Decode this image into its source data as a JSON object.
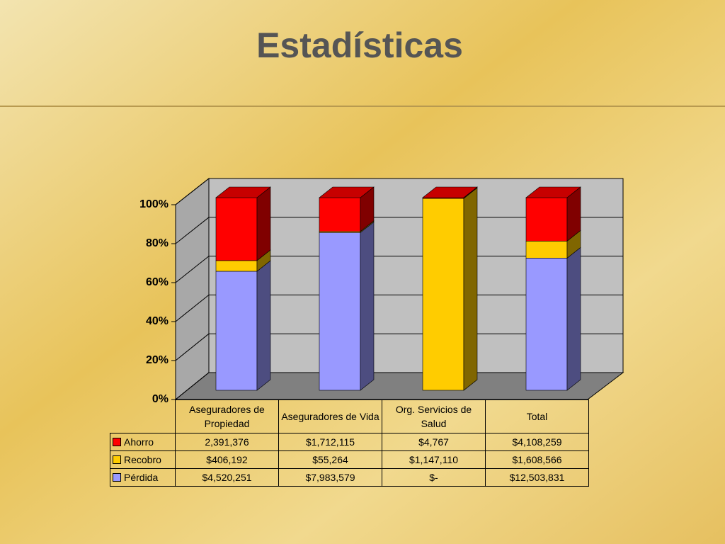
{
  "chart_data": {
    "type": "bar",
    "stacking": "percent",
    "title": "Estadísticas",
    "categories": [
      "Aseguradores de Propiedad",
      "Aseguradores de Vida",
      "Org. Servicios de Salud",
      "Total"
    ],
    "series": [
      {
        "name": "Ahorro",
        "color": "#ff0000",
        "values": [
          2391376,
          1712115,
          4767,
          4108259
        ],
        "value_labels": [
          "2,391,376",
          "$1,712,115",
          "$4,767",
          "$4,108,259"
        ]
      },
      {
        "name": "Recobro",
        "color": "#ffcc00",
        "values": [
          406192,
          55264,
          1147110,
          1608566
        ],
        "value_labels": [
          "$406,192",
          "$55,264",
          "$1,147,110",
          "$1,608,566"
        ]
      },
      {
        "name": "Pérdida",
        "color": "#9999ff",
        "values": [
          4520251,
          7983579,
          0,
          12503831
        ],
        "value_labels": [
          "$4,520,251",
          "$7,983,579",
          "$-",
          "$12,503,831"
        ]
      }
    ],
    "ylim": [
      0,
      100
    ],
    "yticks": [
      {
        "value": 0,
        "label": "0%"
      },
      {
        "value": 20,
        "label": "20%"
      },
      {
        "value": 40,
        "label": "40%"
      },
      {
        "value": 60,
        "label": "60%"
      },
      {
        "value": 80,
        "label": "80%"
      },
      {
        "value": 100,
        "label": "100%"
      }
    ],
    "grid": true
  }
}
